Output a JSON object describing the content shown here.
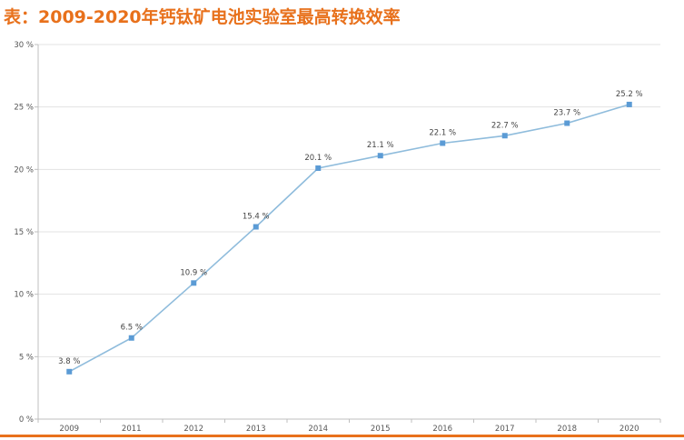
{
  "header": {
    "title": "表：2009-2020年钙钛矿电池实验室最高转换效率"
  },
  "chart_data": {
    "type": "line",
    "title": "表：2009-2020年钙钛矿电池实验室最高转换效率",
    "categories": [
      "2009",
      "2011",
      "2012",
      "2013",
      "2014",
      "2015",
      "2016",
      "2017",
      "2018",
      "2020"
    ],
    "series": [
      {
        "values": [
          3.8,
          6.5,
          10.9,
          15.4,
          20.1,
          21.1,
          22.1,
          22.7,
          23.7,
          25.2
        ],
        "labels": [
          "3.8 %",
          "6.5 %",
          "10.9 %",
          "15.4 %",
          "20.1 %",
          "21.1 %",
          "22.1 %",
          "22.7 %",
          "23.7 %",
          "25.2 %"
        ],
        "color": "#8fbcdc",
        "marker_color": "#5b9bd5"
      }
    ],
    "ylim": [
      0,
      30
    ],
    "yticks": [
      0,
      5,
      10,
      15,
      20,
      25,
      30
    ],
    "ytick_labels": [
      "0 %",
      "5 %",
      "10 %",
      "15 %",
      "20 %",
      "25 %",
      "30 %"
    ],
    "xlabel": "",
    "ylabel": "",
    "grid": true,
    "legend": false,
    "grid_color": "#e3e3e3",
    "axis_color": "#bfbfbf",
    "accent_color": "#e8711c"
  }
}
